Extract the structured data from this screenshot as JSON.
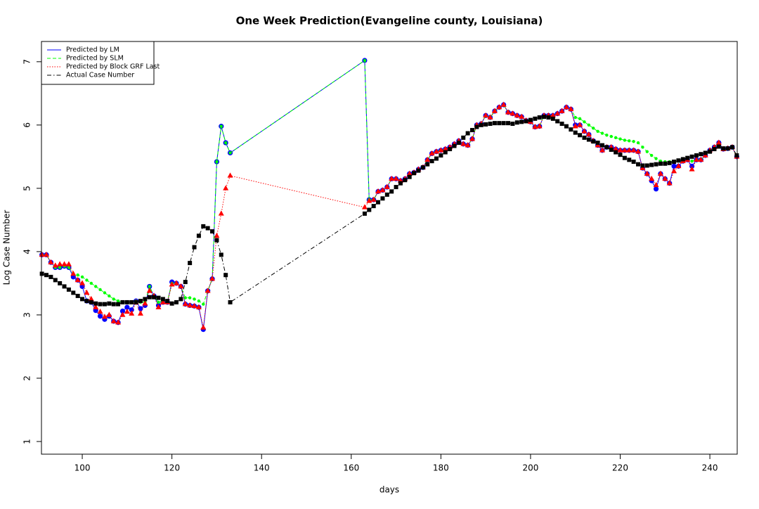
{
  "chart_data": {
    "type": "line",
    "title": "One Week Prediction(Evangeline county, Louisiana)",
    "x_label": "days",
    "y_label": "Log Case Number",
    "xlim": [
      90.9,
      246.1
    ],
    "ylim": [
      0.8,
      7.32
    ],
    "xticks": [
      100,
      120,
      140,
      160,
      180,
      200,
      220,
      240
    ],
    "yticks": [
      1,
      2,
      3,
      4,
      5,
      6,
      7
    ],
    "legend": "top-left",
    "x": [
      91,
      92,
      93,
      94,
      95,
      96,
      97,
      98,
      99,
      100,
      101,
      102,
      103,
      104,
      105,
      106,
      107,
      108,
      109,
      110,
      111,
      112,
      113,
      114,
      115,
      116,
      117,
      118,
      119,
      120,
      121,
      122,
      123,
      124,
      125,
      126,
      127,
      128,
      129,
      130,
      131,
      132,
      133,
      163,
      164,
      165,
      166,
      167,
      168,
      169,
      170,
      171,
      172,
      173,
      174,
      175,
      176,
      177,
      178,
      179,
      180,
      181,
      182,
      183,
      184,
      185,
      186,
      187,
      188,
      189,
      190,
      191,
      192,
      193,
      194,
      195,
      196,
      197,
      198,
      199,
      200,
      201,
      202,
      203,
      204,
      205,
      206,
      207,
      208,
      209,
      210,
      211,
      212,
      213,
      214,
      215,
      216,
      217,
      218,
      219,
      220,
      221,
      222,
      223,
      224,
      225,
      226,
      227,
      228,
      229,
      230,
      231,
      232,
      233,
      234,
      235,
      236,
      237,
      238,
      239,
      240,
      241,
      242,
      243,
      244,
      245,
      246
    ],
    "series": [
      {
        "name": "Predicted by LM",
        "color": "#0000ff",
        "dash": "solid",
        "marker": "circle",
        "values": [
          3.95,
          3.95,
          3.83,
          3.75,
          3.75,
          3.77,
          3.75,
          3.6,
          3.55,
          3.45,
          3.22,
          3.2,
          3.07,
          2.98,
          2.93,
          2.98,
          2.9,
          2.88,
          3.06,
          3.12,
          3.08,
          3.22,
          3.1,
          3.15,
          3.45,
          3.3,
          3.15,
          3.2,
          3.2,
          3.52,
          3.5,
          3.45,
          3.17,
          3.15,
          3.14,
          3.12,
          2.77,
          3.38,
          3.57,
          5.42,
          5.98,
          5.72,
          5.56,
          7.02,
          4.82,
          4.82,
          4.95,
          4.97,
          5.02,
          5.15,
          5.15,
          5.12,
          5.15,
          5.23,
          5.25,
          5.3,
          5.33,
          5.45,
          5.55,
          5.58,
          5.6,
          5.62,
          5.65,
          5.7,
          5.75,
          5.7,
          5.68,
          5.78,
          6.0,
          6.02,
          6.15,
          6.12,
          6.22,
          6.28,
          6.32,
          6.2,
          6.18,
          6.15,
          6.13,
          6.07,
          6.05,
          5.97,
          5.98,
          6.15,
          6.15,
          6.15,
          6.18,
          6.22,
          6.28,
          6.25,
          6.0,
          6.0,
          5.9,
          5.85,
          5.75,
          5.68,
          5.6,
          5.65,
          5.65,
          5.62,
          5.6,
          5.6,
          5.6,
          5.6,
          5.58,
          5.32,
          5.23,
          5.12,
          4.99,
          5.23,
          5.15,
          5.08,
          5.35,
          5.35,
          5.43,
          5.45,
          5.35,
          5.45,
          5.45,
          5.52,
          5.6,
          5.65,
          5.72,
          5.62,
          5.63,
          5.65,
          5.5
        ]
      },
      {
        "name": "Predicted by SLM",
        "color": "#00ff00",
        "dash": "dashed",
        "marker": "dot",
        "values": [
          3.95,
          3.95,
          3.83,
          3.75,
          3.75,
          3.77,
          3.75,
          3.65,
          3.63,
          3.6,
          3.55,
          3.5,
          3.45,
          3.4,
          3.35,
          3.3,
          3.25,
          3.22,
          3.2,
          3.2,
          3.2,
          3.22,
          3.2,
          3.2,
          3.45,
          3.3,
          3.2,
          3.22,
          3.22,
          3.5,
          3.5,
          3.45,
          3.27,
          3.27,
          3.25,
          3.22,
          3.17,
          3.38,
          3.57,
          5.42,
          5.98,
          5.72,
          5.56,
          7.02,
          4.82,
          4.82,
          4.95,
          4.97,
          5.02,
          5.15,
          5.15,
          5.12,
          5.15,
          5.23,
          5.25,
          5.3,
          5.33,
          5.45,
          5.55,
          5.58,
          5.6,
          5.62,
          5.65,
          5.7,
          5.75,
          5.7,
          5.68,
          5.78,
          6.0,
          6.02,
          6.15,
          6.12,
          6.22,
          6.28,
          6.32,
          6.2,
          6.18,
          6.15,
          6.13,
          6.07,
          6.05,
          5.97,
          5.98,
          6.15,
          6.15,
          6.15,
          6.18,
          6.22,
          6.28,
          6.25,
          6.12,
          6.1,
          6.05,
          6.0,
          5.95,
          5.9,
          5.87,
          5.84,
          5.82,
          5.8,
          5.78,
          5.76,
          5.75,
          5.74,
          5.72,
          5.65,
          5.58,
          5.52,
          5.47,
          5.43,
          5.42,
          5.42,
          5.42,
          5.43,
          5.43,
          5.45,
          5.43,
          5.45,
          5.45,
          5.52,
          5.6,
          5.65,
          5.72,
          5.62,
          5.63,
          5.65,
          5.5
        ]
      },
      {
        "name": "Predicted by Block GRF Last",
        "color": "#ff0000",
        "dash": "dotted",
        "marker": "triangle",
        "values": [
          3.95,
          3.95,
          3.83,
          3.78,
          3.8,
          3.8,
          3.8,
          3.65,
          3.55,
          3.5,
          3.35,
          3.25,
          3.12,
          3.05,
          2.97,
          3.0,
          2.9,
          2.88,
          3.0,
          3.05,
          3.02,
          3.2,
          3.02,
          3.18,
          3.38,
          3.3,
          3.12,
          3.2,
          3.2,
          3.48,
          3.5,
          3.45,
          3.17,
          3.15,
          3.14,
          3.12,
          2.8,
          3.38,
          3.57,
          4.25,
          4.6,
          5.0,
          5.2,
          4.7,
          4.8,
          4.82,
          4.95,
          4.97,
          5.02,
          5.15,
          5.15,
          5.12,
          5.15,
          5.23,
          5.25,
          5.3,
          5.33,
          5.45,
          5.55,
          5.58,
          5.6,
          5.62,
          5.65,
          5.7,
          5.75,
          5.7,
          5.68,
          5.78,
          6.0,
          6.02,
          6.15,
          6.12,
          6.22,
          6.28,
          6.32,
          6.2,
          6.18,
          6.15,
          6.13,
          6.07,
          6.05,
          5.97,
          5.98,
          6.15,
          6.15,
          6.15,
          6.18,
          6.22,
          6.28,
          6.25,
          5.98,
          6.0,
          5.9,
          5.85,
          5.75,
          5.68,
          5.6,
          5.65,
          5.65,
          5.62,
          5.6,
          5.6,
          5.6,
          5.6,
          5.58,
          5.32,
          5.23,
          5.15,
          5.05,
          5.23,
          5.15,
          5.08,
          5.27,
          5.35,
          5.43,
          5.45,
          5.3,
          5.45,
          5.45,
          5.52,
          5.6,
          5.65,
          5.72,
          5.62,
          5.63,
          5.65,
          5.5
        ]
      },
      {
        "name": "Actual Case Number",
        "color": "#000000",
        "dash": "dotdash",
        "marker": "square",
        "values": [
          3.65,
          3.63,
          3.6,
          3.55,
          3.5,
          3.45,
          3.4,
          3.35,
          3.3,
          3.25,
          3.22,
          3.2,
          3.18,
          3.17,
          3.17,
          3.18,
          3.17,
          3.17,
          3.2,
          3.2,
          3.2,
          3.2,
          3.22,
          3.25,
          3.28,
          3.28,
          3.27,
          3.25,
          3.22,
          3.18,
          3.2,
          3.25,
          3.52,
          3.82,
          4.07,
          4.25,
          4.4,
          4.37,
          4.32,
          4.18,
          3.95,
          3.63,
          3.2,
          4.6,
          4.66,
          4.72,
          4.78,
          4.84,
          4.9,
          4.95,
          5.02,
          5.08,
          5.13,
          5.18,
          5.24,
          5.28,
          5.33,
          5.38,
          5.43,
          5.47,
          5.52,
          5.57,
          5.62,
          5.67,
          5.72,
          5.8,
          5.87,
          5.92,
          5.97,
          6.0,
          6.01,
          6.02,
          6.03,
          6.03,
          6.03,
          6.03,
          6.02,
          6.04,
          6.05,
          6.06,
          6.08,
          6.1,
          6.12,
          6.13,
          6.12,
          6.1,
          6.06,
          6.02,
          5.98,
          5.93,
          5.88,
          5.84,
          5.8,
          5.77,
          5.74,
          5.72,
          5.68,
          5.65,
          5.61,
          5.57,
          5.53,
          5.48,
          5.45,
          5.42,
          5.38,
          5.36,
          5.36,
          5.37,
          5.38,
          5.39,
          5.39,
          5.4,
          5.42,
          5.44,
          5.46,
          5.48,
          5.5,
          5.52,
          5.54,
          5.56,
          5.58,
          5.62,
          5.66,
          5.63,
          5.63,
          5.65,
          5.52
        ]
      }
    ]
  }
}
